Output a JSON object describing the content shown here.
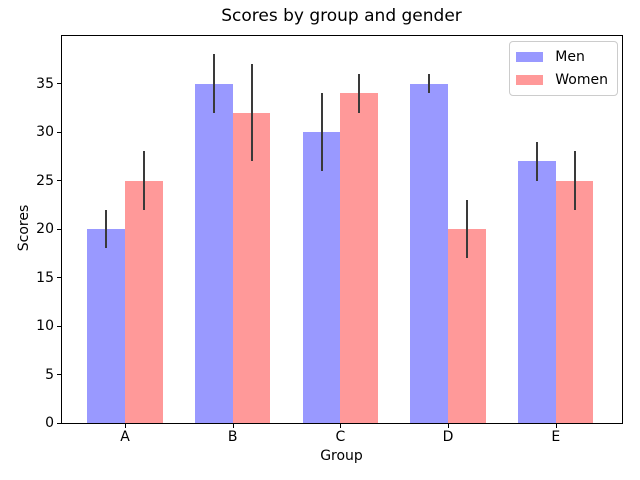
{
  "figure": {
    "title": "Scores by group and gender",
    "xlabel": "Group",
    "ylabel": "Scores"
  },
  "chart_data": {
    "type": "bar",
    "title": "Scores by group and gender",
    "xlabel": "Group",
    "ylabel": "Scores",
    "categories": [
      "A",
      "B",
      "C",
      "D",
      "E"
    ],
    "series": [
      {
        "name": "Men",
        "color": "#9999ff",
        "values": [
          20,
          35,
          30,
          35,
          27
        ],
        "yerr": [
          2,
          3,
          4,
          1,
          2
        ]
      },
      {
        "name": "Women",
        "color": "#ff9999",
        "values": [
          25,
          32,
          34,
          20,
          25
        ],
        "yerr": [
          3,
          5,
          2,
          3,
          3
        ]
      }
    ],
    "bar_width": 0.35,
    "xlim": [
      -0.585,
      4.615
    ],
    "ylim": [
      0,
      39.9
    ],
    "yticks": [
      0,
      5,
      10,
      15,
      20,
      25,
      30,
      35
    ],
    "error_color": "#3a3a3a",
    "spine_color": "#000000",
    "grid": false,
    "legend": {
      "position": "upper right",
      "entries": [
        "Men",
        "Women"
      ]
    }
  }
}
